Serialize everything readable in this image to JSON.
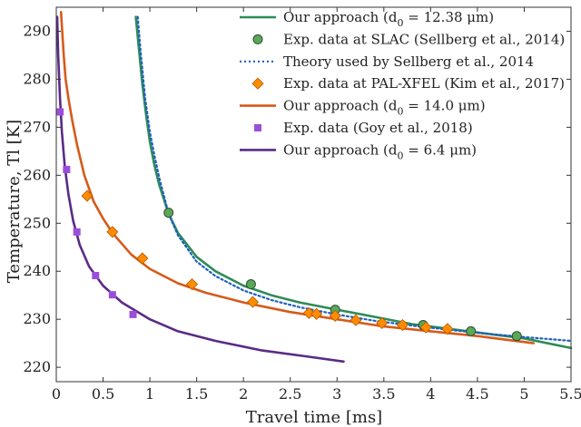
{
  "chart_data": {
    "type": "line",
    "xlabel": "Travel time [ms]",
    "ylabel": "Temperature, Tl [K]",
    "xlim": [
      0,
      5.5
    ],
    "ylim": [
      217,
      295
    ],
    "xticks": [
      0,
      0.5,
      1,
      1.5,
      2,
      2.5,
      3,
      3.5,
      4,
      4.5,
      5,
      5.5
    ],
    "xtick_labels": [
      "0",
      "0.5",
      "1",
      "1.5",
      "2",
      "2.5",
      "3",
      "3.5",
      "4",
      "4.5",
      "5",
      "5.5"
    ],
    "yticks": [
      220,
      230,
      240,
      250,
      260,
      270,
      280,
      290
    ],
    "ytick_labels": [
      "220",
      "230",
      "240",
      "250",
      "260",
      "270",
      "280",
      "290"
    ],
    "grid": false,
    "legend_position": "top-right",
    "colors": {
      "green": "#2e8b57",
      "blue_dotted": "#1f5fbf",
      "orange_marker": "#ff8c00",
      "orange_line": "#d65a1a",
      "purple_marker": "#9b4ddb",
      "purple_line": "#5b2a86"
    },
    "series": [
      {
        "name": "Our approach (d0 = 12.38 μm)",
        "kind": "line",
        "color": "#2e8b57",
        "x": [
          0.85,
          0.88,
          0.92,
          0.96,
          1.0,
          1.05,
          1.1,
          1.2,
          1.3,
          1.5,
          1.7,
          2.0,
          2.3,
          2.6,
          3.0,
          3.4,
          3.8,
          4.2,
          4.6,
          5.0,
          5.5
        ],
        "y": [
          293,
          287,
          279,
          272.5,
          267,
          262,
          258,
          252,
          248,
          243,
          240,
          237,
          235,
          233.5,
          232,
          230.5,
          229,
          228,
          227,
          226,
          224
        ]
      },
      {
        "name": "Exp. data at SLAC (Sellberg et al., 2014)",
        "kind": "scatter",
        "marker": "circle",
        "color": "#5aa85a",
        "x": [
          1.2,
          2.08,
          2.98,
          3.92,
          4.43,
          4.92
        ],
        "y": [
          252.2,
          237.3,
          232.0,
          228.8,
          227.5,
          226.5
        ]
      },
      {
        "name": "Theory used by Sellberg et al., 2014",
        "kind": "line",
        "style": "dotted",
        "color": "#1f5fbf",
        "x": [
          0.87,
          0.9,
          0.95,
          1.0,
          1.05,
          1.1,
          1.2,
          1.3,
          1.5,
          1.7,
          2.0,
          2.3,
          2.6,
          3.0,
          3.4,
          3.8,
          4.2,
          4.6,
          5.0,
          5.5
        ],
        "y": [
          293,
          286,
          276,
          269,
          264,
          259.5,
          252,
          247.5,
          242,
          239,
          236,
          234,
          232.5,
          231,
          229.7,
          228.7,
          227.8,
          227,
          226.3,
          225.5
        ]
      },
      {
        "name": "Exp. data at PAL-XFEL (Kim et al., 2017)",
        "kind": "scatter",
        "marker": "diamond",
        "color": "#ff8c00",
        "x": [
          0.33,
          0.6,
          0.92,
          1.45,
          2.1,
          2.7,
          2.78,
          2.98,
          3.2,
          3.48,
          3.7,
          3.95,
          4.18
        ],
        "y": [
          255.7,
          248.2,
          242.7,
          237.3,
          233.6,
          231.3,
          231.1,
          230.7,
          229.8,
          229.2,
          228.8,
          228.3,
          228.0
        ]
      },
      {
        "name": "Our approach (d0 = 14.0 μm)",
        "kind": "line",
        "color": "#d65a1a",
        "x": [
          0.05,
          0.08,
          0.1,
          0.13,
          0.17,
          0.22,
          0.3,
          0.4,
          0.5,
          0.6,
          0.8,
          1.0,
          1.3,
          1.6,
          2.0,
          2.5,
          3.0,
          3.5,
          4.0,
          4.5,
          5.1
        ],
        "y": [
          294,
          285,
          280,
          276,
          271.5,
          266.5,
          260,
          254.5,
          251,
          248,
          243.5,
          240.5,
          237.5,
          235.5,
          233.5,
          231.5,
          230,
          228.5,
          227.5,
          226.5,
          225
        ]
      },
      {
        "name": "Exp. data (Goy et al., 2018)",
        "kind": "scatter",
        "marker": "square",
        "color": "#9b4ddb",
        "x": [
          0.04,
          0.11,
          0.22,
          0.42,
          0.6,
          0.82
        ],
        "y": [
          273.2,
          261.2,
          248.2,
          239.1,
          235.1,
          231.0
        ]
      },
      {
        "name": "Our approach (d0 = 6.4 μm)",
        "kind": "line",
        "color": "#5b2a86",
        "x": [
          0.01,
          0.02,
          0.04,
          0.06,
          0.09,
          0.13,
          0.18,
          0.25,
          0.35,
          0.5,
          0.7,
          1.0,
          1.3,
          1.7,
          2.2,
          2.7,
          3.07
        ],
        "y": [
          293,
          285,
          276,
          269,
          262,
          256,
          250.5,
          245.5,
          241,
          237,
          233.5,
          230,
          227.5,
          225.5,
          223.5,
          222.2,
          221.2
        ]
      }
    ],
    "legend": [
      {
        "kind": "line",
        "color": "#2e8b57",
        "text": "Our approach (d",
        "sub": "0",
        "rest": " = 12.38 μm)"
      },
      {
        "kind": "circle",
        "color": "#5aa85a",
        "text": "Exp. data at SLAC (Sellberg et al., 2014)"
      },
      {
        "kind": "dotted",
        "color": "#1f5fbf",
        "text": "Theory used by Sellberg et al., 2014"
      },
      {
        "kind": "diamond",
        "color": "#ff8c00",
        "text": "Exp. data at PAL-XFEL (Kim et al., 2017)"
      },
      {
        "kind": "line",
        "color": "#d65a1a",
        "text": "Our approach (d",
        "sub": "0",
        "rest": " = 14.0 μm)"
      },
      {
        "kind": "square",
        "color": "#9b4ddb",
        "text": "Exp. data (Goy et al., 2018)"
      },
      {
        "kind": "line",
        "color": "#5b2a86",
        "text": "Our approach (d",
        "sub": "0",
        "rest": " = 6.4 μm)"
      }
    ]
  }
}
